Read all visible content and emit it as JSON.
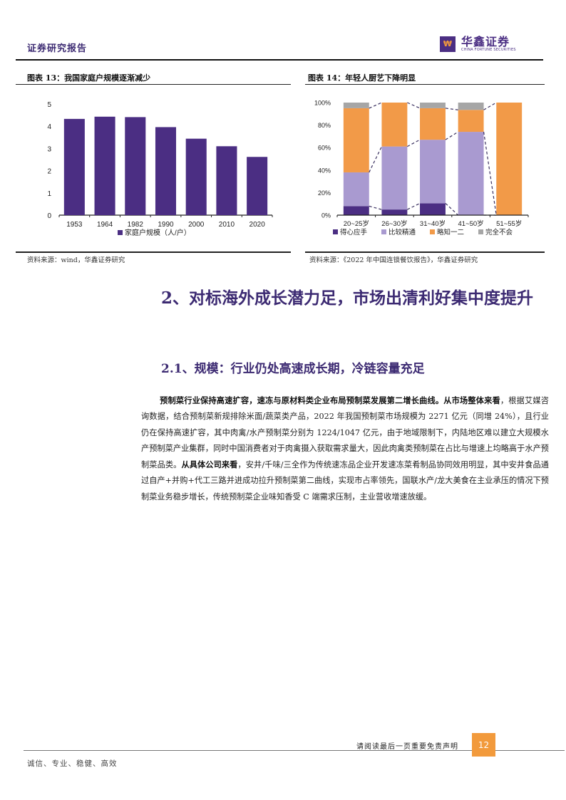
{
  "header": {
    "title": "证券研究报告",
    "logo_mark": "₩",
    "logo_cn": "华鑫证券",
    "logo_en": "CHINA FORTUNE SECURITIES"
  },
  "figures": [
    {
      "title": "图表 13：我国家庭户规模逐渐减少",
      "source": "资料来源：wind，华鑫证券研究"
    },
    {
      "title": "图表 14：年轻人厨艺下降明显",
      "source": "资料来源：《2022 年中国连锁餐饮报告》，华鑫证券研究"
    }
  ],
  "chart_data": [
    {
      "type": "bar",
      "title": "图表 13：我国家庭户规模逐渐减少",
      "categories": [
        "1953",
        "1964",
        "1982",
        "1990",
        "2000",
        "2010",
        "2020"
      ],
      "series": [
        {
          "name": "家庭户规模（人/户）",
          "values": [
            4.33,
            4.43,
            4.41,
            3.96,
            3.44,
            3.1,
            2.62
          ],
          "color": "#4b2e83"
        }
      ],
      "yticks": [
        "0",
        "1",
        "2",
        "3",
        "4",
        "5"
      ],
      "ylim": [
        0,
        5
      ],
      "xlabel": "",
      "ylabel": "",
      "legend_position": "bottom",
      "grid": false
    },
    {
      "type": "bar",
      "stacked": true,
      "percent": true,
      "title": "图表 14：年轻人厨艺下降明显",
      "categories": [
        "20~25岁",
        "26~30岁",
        "31~40岁",
        "41~50岁",
        "51~55岁"
      ],
      "series": [
        {
          "name": "得心应手",
          "values": [
            8,
            5,
            10.5,
            0,
            0
          ],
          "color": "#4b2e83"
        },
        {
          "name": "比较精通",
          "values": [
            30,
            56,
            56.5,
            74,
            0
          ],
          "color": "#a99ad0"
        },
        {
          "name": "略知一二",
          "values": [
            57,
            39,
            28,
            19.5,
            100
          ],
          "color": "#f29a48"
        },
        {
          "name": "完全不会",
          "values": [
            5,
            0,
            5,
            6.5,
            0
          ],
          "color": "#a6a6a6"
        }
      ],
      "yticks": [
        "0%",
        "20%",
        "40%",
        "60%",
        "80%",
        "100%"
      ],
      "ylim": [
        0,
        100
      ],
      "series_lines": "dashed",
      "legend_position": "bottom",
      "grid": false
    }
  ],
  "section": {
    "heading": "2、对标海外成长潜力足，市场出清利好集中度提升",
    "subheading": "2.1、规模：行业仍处高速成长期，冷链容量充足"
  },
  "paragraph": {
    "bold1": "预制菜行业保持高速扩容，速冻与原材料类企业布局预制菜发展第二增长曲线。从市场整体来看",
    "text1": "，根据艾媒咨询数据，结合预制菜新规排除米面/蔬菜类产品，2022 年我国预制菜市场规模为 2271 亿元（同增 24%），且行业仍在保持高速扩容，其中肉禽/水产预制菜分别为 1224/1047 亿元，由于地域限制下，内陆地区难以建立大规模水产预制菜产业集群，同时中国消费者对于肉禽摄入获取需求量大，因此肉禽类预制菜在占比与增速上均略高于水产预制菜品类。",
    "bold2": "从具体公司来看",
    "text2": "，安井/千味/三全作为传统速冻品企业开发速冻菜肴制品协同效用明显，其中安井食品通过自产+并购+代工三路并进成功拉升预制菜第二曲线，实现市占率领先，国联水产/龙大美食在主业承压的情况下预制菜业务稳步增长，传统预制菜企业味知香受 C 端需求压制，主业营收增速放缓。"
  },
  "footer": {
    "notice": "请阅读最后一页重要免责声明",
    "page_number": "12",
    "motto": "诚信、专业、稳健、高效"
  }
}
